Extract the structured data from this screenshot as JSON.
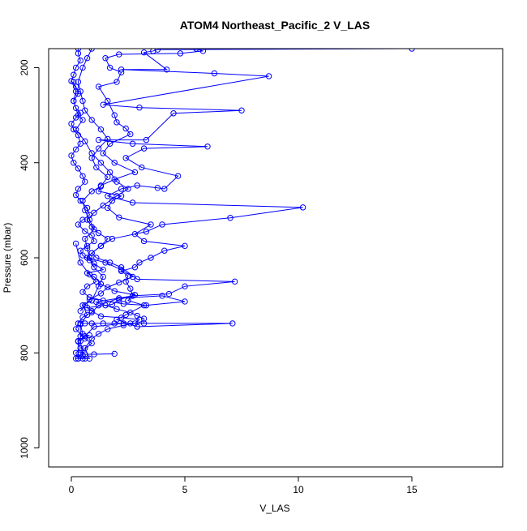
{
  "chart_data": {
    "type": "line",
    "title": "ATOM4 Northeast_Pacific_2 V_LAS",
    "xlabel": "V_LAS",
    "ylabel": "Pressure (mbar)",
    "xlim": [
      -1,
      19
    ],
    "ylim": [
      1040,
      160
    ],
    "y_reversed": true,
    "x_ticks": [
      0,
      5,
      10,
      15
    ],
    "y_ticks": [
      200,
      400,
      600,
      800,
      1000
    ],
    "grid": false,
    "legend": "none",
    "marker": "open-circle",
    "colors": {
      "series": "#0000ff",
      "axis": "#000000"
    },
    "series": [
      {
        "points": [
          [
            0.3,
            812
          ],
          [
            0.2,
            800
          ],
          [
            0.4,
            790
          ],
          [
            0.3,
            775
          ],
          [
            0.5,
            760
          ],
          [
            0.4,
            740
          ],
          [
            0.7,
            720
          ],
          [
            0.5,
            700
          ],
          [
            0.9,
            690
          ],
          [
            1.2,
            660
          ],
          [
            1.4,
            640
          ],
          [
            1.0,
            620
          ],
          [
            0.8,
            600
          ],
          [
            0.7,
            580
          ],
          [
            0.6,
            560
          ],
          [
            1.0,
            540
          ],
          [
            0.8,
            520
          ],
          [
            0.6,
            500
          ],
          [
            0.5,
            480
          ],
          [
            0.9,
            460
          ],
          [
            1.3,
            450
          ],
          [
            1.6,
            430
          ],
          [
            1.1,
            410
          ],
          [
            0.9,
            390
          ],
          [
            1.2,
            370
          ],
          [
            1.6,
            350
          ],
          [
            1.3,
            330
          ],
          [
            0.9,
            310
          ],
          [
            0.6,
            290
          ],
          [
            0.5,
            270
          ],
          [
            0.4,
            250
          ],
          [
            0.3,
            230
          ],
          [
            0.5,
            200
          ],
          [
            0.7,
            180
          ],
          [
            0.9,
            160
          ]
        ]
      },
      {
        "points": [
          [
            0.6,
            812
          ],
          [
            0.5,
            805
          ],
          [
            0.4,
            775
          ],
          [
            0.6,
            765
          ],
          [
            1.0,
            745
          ],
          [
            2.3,
            738
          ],
          [
            7.1,
            738
          ],
          [
            2.9,
            745
          ],
          [
            2.0,
            730
          ],
          [
            2.4,
            720
          ],
          [
            3.2,
            700
          ],
          [
            2.5,
            690
          ],
          [
            2.7,
            680
          ],
          [
            4.3,
            676
          ],
          [
            5.0,
            660
          ],
          [
            7.2,
            650
          ],
          [
            2.9,
            645
          ],
          [
            2.2,
            620
          ],
          [
            1.7,
            610
          ],
          [
            1.1,
            600
          ],
          [
            0.9,
            590
          ],
          [
            1.3,
            575
          ],
          [
            1.8,
            560
          ],
          [
            3.3,
            545
          ],
          [
            4.0,
            530
          ],
          [
            7.0,
            516
          ],
          [
            10.2,
            494
          ],
          [
            2.7,
            484
          ],
          [
            1.6,
            470
          ],
          [
            2.2,
            455
          ],
          [
            2.9,
            448
          ],
          [
            3.8,
            453
          ],
          [
            4.1,
            455
          ],
          [
            4.7,
            428
          ],
          [
            3.1,
            410
          ],
          [
            2.4,
            390
          ],
          [
            3.2,
            370
          ],
          [
            6.0,
            366
          ],
          [
            2.7,
            360
          ],
          [
            1.2,
            352
          ],
          [
            3.3,
            352
          ],
          [
            4.5,
            296
          ],
          [
            7.5,
            290
          ],
          [
            3.0,
            284
          ],
          [
            1.4,
            278
          ],
          [
            8.7,
            218
          ],
          [
            6.3,
            212
          ],
          [
            2.2,
            204
          ],
          [
            4.2,
            204
          ],
          [
            3.2,
            168
          ],
          [
            3.6,
            165
          ],
          [
            3.8,
            162
          ],
          [
            15.0,
            160
          ]
        ]
      },
      {
        "points": [
          [
            1.9,
            802
          ],
          [
            1.0,
            803
          ],
          [
            0.6,
            803
          ],
          [
            0.4,
            803
          ],
          [
            0.3,
            812
          ],
          [
            0.3,
            776
          ],
          [
            0.8,
            763
          ],
          [
            0.4,
            765
          ],
          [
            0.4,
            738
          ],
          [
            0.6,
            738
          ],
          [
            0.9,
            738
          ],
          [
            1.4,
            738
          ],
          [
            1.9,
            738
          ],
          [
            2.6,
            738
          ],
          [
            3.2,
            738
          ],
          [
            3.2,
            728
          ],
          [
            2.9,
            722
          ],
          [
            2.6,
            715
          ],
          [
            2.0,
            708
          ],
          [
            1.5,
            700
          ],
          [
            1.1,
            693
          ],
          [
            2.7,
            680
          ],
          [
            2.6,
            665
          ],
          [
            2.4,
            650
          ],
          [
            2.5,
            638
          ],
          [
            2.2,
            628
          ],
          [
            2.8,
            620
          ],
          [
            3.0,
            610
          ],
          [
            3.5,
            600
          ],
          [
            4.1,
            585
          ],
          [
            5.0,
            575
          ],
          [
            3.2,
            565
          ],
          [
            2.8,
            550
          ],
          [
            3.5,
            530
          ],
          [
            2.1,
            515
          ],
          [
            1.6,
            495
          ],
          [
            1.8,
            480
          ],
          [
            2.2,
            470
          ],
          [
            1.2,
            460
          ],
          [
            1.3,
            448
          ],
          [
            1.9,
            435
          ],
          [
            2.8,
            420
          ],
          [
            1.9,
            400
          ],
          [
            1.4,
            380
          ],
          [
            1.7,
            360
          ],
          [
            2.6,
            340
          ],
          [
            2.4,
            328
          ],
          [
            2.0,
            315
          ],
          [
            1.9,
            300
          ],
          [
            1.6,
            270
          ],
          [
            1.2,
            240
          ],
          [
            2.0,
            230
          ],
          [
            2.2,
            210
          ],
          [
            1.7,
            200
          ],
          [
            1.5,
            180
          ],
          [
            2.1,
            172
          ],
          [
            4.8,
            170
          ],
          [
            5.8,
            165
          ],
          [
            5.5,
            160
          ]
        ]
      },
      {
        "points": [
          [
            0.2,
            812
          ],
          [
            0.3,
            812
          ],
          [
            0.5,
            812
          ],
          [
            0.8,
            812
          ],
          [
            0.6,
            790
          ],
          [
            0.9,
            770
          ],
          [
            1.2,
            760
          ],
          [
            1.6,
            750
          ],
          [
            2.3,
            742
          ],
          [
            2.8,
            738
          ],
          [
            3.0,
            730
          ],
          [
            2.2,
            726
          ],
          [
            1.3,
            723
          ],
          [
            0.9,
            712
          ],
          [
            0.7,
            705
          ],
          [
            1.8,
            698
          ],
          [
            2.1,
            688
          ],
          [
            2.8,
            678
          ],
          [
            1.9,
            670
          ],
          [
            1.3,
            655
          ],
          [
            1.0,
            640
          ],
          [
            0.7,
            632
          ],
          [
            1.4,
            625
          ],
          [
            1.0,
            612
          ],
          [
            0.8,
            605
          ],
          [
            0.5,
            595
          ],
          [
            0.4,
            585
          ],
          [
            0.7,
            575
          ],
          [
            1.0,
            565
          ],
          [
            0.9,
            553
          ],
          [
            0.6,
            544
          ],
          [
            0.3,
            530
          ],
          [
            0.5,
            520
          ],
          [
            0.8,
            510
          ],
          [
            0.7,
            495
          ],
          [
            0.4,
            480
          ],
          [
            0.2,
            468
          ],
          [
            0.3,
            455
          ],
          [
            0.6,
            440
          ],
          [
            0.5,
            428
          ],
          [
            0.3,
            412
          ],
          [
            0.1,
            400
          ],
          [
            0.0,
            385
          ],
          [
            0.2,
            372
          ],
          [
            0.4,
            360
          ],
          [
            0.3,
            342
          ],
          [
            0.1,
            330
          ],
          [
            0.0,
            318
          ],
          [
            0.2,
            305
          ],
          [
            0.4,
            295
          ],
          [
            0.2,
            285
          ],
          [
            0.1,
            270
          ],
          [
            0.3,
            255
          ],
          [
            0.2,
            240
          ],
          [
            0.0,
            228
          ],
          [
            0.1,
            215
          ],
          [
            0.2,
            200
          ],
          [
            0.4,
            185
          ],
          [
            0.3,
            170
          ],
          [
            0.3,
            160
          ]
        ]
      },
      {
        "points": [
          [
            0.2,
            570
          ],
          [
            0.4,
            610
          ],
          [
            0.8,
            635
          ],
          [
            1.1,
            650
          ],
          [
            0.7,
            660
          ],
          [
            0.5,
            672
          ],
          [
            0.8,
            683
          ],
          [
            1.4,
            690
          ],
          [
            2.3,
            697
          ],
          [
            3.3,
            700
          ],
          [
            5.0,
            692
          ],
          [
            4.0,
            680
          ],
          [
            2.1,
            685
          ],
          [
            1.2,
            700
          ],
          [
            0.9,
            715
          ],
          [
            0.5,
            725
          ],
          [
            0.3,
            738
          ],
          [
            0.2,
            750
          ],
          [
            0.6,
            770
          ],
          [
            0.9,
            780
          ],
          [
            0.4,
            800
          ]
        ]
      },
      {
        "points": [
          [
            0.1,
            230
          ],
          [
            0.2,
            250
          ],
          [
            0.1,
            270
          ],
          [
            0.3,
            300
          ],
          [
            0.5,
            310
          ],
          [
            0.2,
            330
          ],
          [
            0.6,
            355
          ],
          [
            0.9,
            380
          ],
          [
            1.3,
            400
          ],
          [
            1.7,
            420
          ],
          [
            2.0,
            440
          ],
          [
            2.5,
            455
          ],
          [
            2.0,
            470
          ],
          [
            1.4,
            490
          ],
          [
            1.0,
            505
          ],
          [
            0.7,
            520
          ],
          [
            0.9,
            535
          ],
          [
            1.2,
            548
          ],
          [
            1.6,
            560
          ],
          [
            1.3,
            575
          ],
          [
            0.9,
            590
          ],
          [
            0.7,
            600
          ],
          [
            1.5,
            610
          ],
          [
            2.2,
            625
          ],
          [
            2.7,
            640
          ],
          [
            2.1,
            652
          ],
          [
            1.6,
            662
          ],
          [
            1.3,
            675
          ],
          [
            0.8,
            688
          ],
          [
            0.6,
            700
          ],
          [
            0.4,
            712
          ]
        ]
      }
    ]
  }
}
